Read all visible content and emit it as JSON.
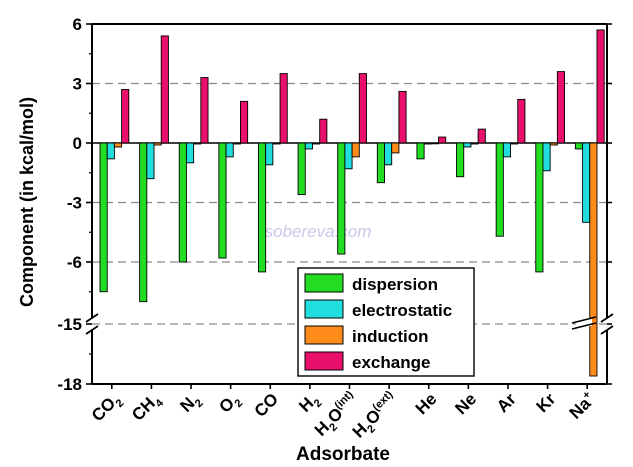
{
  "watermark": "sobereva.com",
  "chart_data": {
    "type": "bar",
    "xlabel": "Adsorbate",
    "ylabel": "Component (in kcal/mol)",
    "categories": [
      {
        "base": "CO",
        "sub": "2",
        "sup": ""
      },
      {
        "base": "CH",
        "sub": "4",
        "sup": ""
      },
      {
        "base": "N",
        "sub": "2",
        "sup": ""
      },
      {
        "base": "O",
        "sub": "2",
        "sup": ""
      },
      {
        "base": "CO",
        "sub": "",
        "sup": ""
      },
      {
        "base": "H",
        "sub": "2",
        "sup": ""
      },
      {
        "base": "H",
        "sub": "2",
        "sup": "O",
        "sup2": "(int)"
      },
      {
        "base": "H",
        "sub": "2",
        "sup": "O",
        "sup2": "(ext)"
      },
      {
        "base": "He",
        "sub": "",
        "sup": ""
      },
      {
        "base": "Ne",
        "sub": "",
        "sup": ""
      },
      {
        "base": "Ar",
        "sub": "",
        "sup": ""
      },
      {
        "base": "Kr",
        "sub": "",
        "sup": ""
      },
      {
        "base": "Na",
        "sub": "",
        "sup": "+"
      }
    ],
    "series": [
      {
        "name": "dispersion",
        "color": "#22dd22",
        "values": [
          -7.5,
          -8.0,
          -6.0,
          -5.8,
          -6.5,
          -2.6,
          -5.6,
          -2.0,
          -0.8,
          -1.7,
          -4.7,
          -6.5,
          -0.3
        ]
      },
      {
        "name": "electrostatic",
        "color": "#22dddd",
        "values": [
          -0.8,
          -1.8,
          -1.0,
          -0.7,
          -1.1,
          -0.3,
          -1.3,
          -1.1,
          -0.05,
          -0.2,
          -0.7,
          -1.4,
          -4.0
        ]
      },
      {
        "name": "induction",
        "color": "#ff8c1a",
        "values": [
          -0.2,
          -0.1,
          -0.05,
          -0.05,
          -0.05,
          -0.05,
          -0.7,
          -0.5,
          -0.02,
          -0.05,
          -0.05,
          -0.1,
          -17.6
        ]
      },
      {
        "name": "exchange",
        "color": "#e8106a",
        "values": [
          2.7,
          5.4,
          3.3,
          2.1,
          3.5,
          1.2,
          3.5,
          2.6,
          0.3,
          0.7,
          2.2,
          3.6,
          5.7
        ]
      }
    ],
    "yticks": [
      "6",
      "3",
      "0",
      "-3",
      "-6",
      "-15",
      "-18"
    ],
    "ytick_values": [
      6,
      3,
      0,
      -3,
      -6,
      -15,
      -18
    ],
    "ylim": [
      -18,
      6
    ],
    "axis_break": [
      -9,
      -15
    ],
    "grid": "dashed at y = 3, -3, -6, -15",
    "legend_position": "lower-center"
  }
}
